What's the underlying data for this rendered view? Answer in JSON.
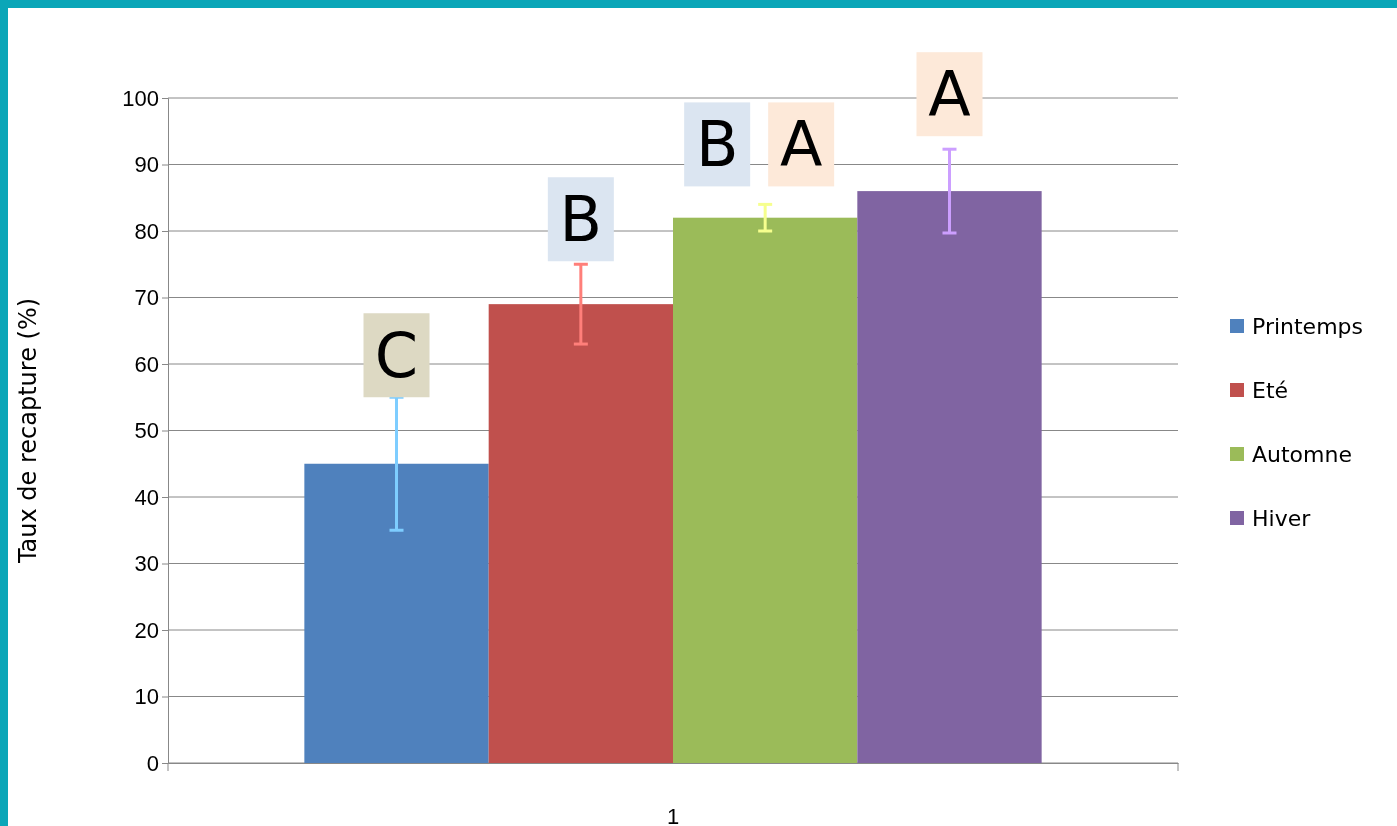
{
  "chart_data": {
    "type": "bar",
    "ylabel": "Taux de recapture (%)",
    "categories": [
      "1"
    ],
    "series": [
      {
        "name": "Printemps",
        "color": "#4f81bd",
        "values": [
          45
        ],
        "errors": [
          10
        ]
      },
      {
        "name": "Eté",
        "color": "#c0504d",
        "values": [
          69
        ],
        "errors": [
          6
        ]
      },
      {
        "name": "Automne",
        "color": "#9bbb59",
        "values": [
          82
        ],
        "errors": [
          2
        ]
      },
      {
        "name": "Hiver",
        "color": "#8064a2",
        "values": [
          86
        ],
        "errors": [
          6.3
        ]
      }
    ],
    "ylim": [
      0,
      100
    ],
    "yticks": [
      0,
      10,
      20,
      30,
      40,
      50,
      60,
      70,
      80,
      90,
      100
    ],
    "grid": "y",
    "legend": "right",
    "annotations": [
      "C",
      "B",
      "B",
      "A",
      "A"
    ]
  }
}
